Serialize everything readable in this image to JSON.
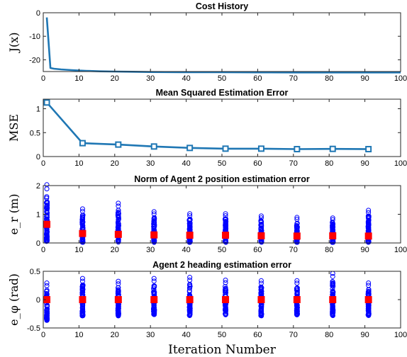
{
  "figure": {
    "xlabel": "Iteration Number"
  },
  "chart_data": [
    {
      "type": "line",
      "title": "Cost History",
      "ylabel": "J(x)",
      "xlim": [
        0,
        100
      ],
      "ylim": [
        -25,
        0
      ],
      "xticks": [
        0,
        10,
        20,
        30,
        40,
        50,
        60,
        70,
        80,
        90,
        100
      ],
      "yticks": [
        -20,
        -10,
        0
      ],
      "grid": false,
      "color": "#1f77b4",
      "series": [
        {
          "marker": "none",
          "x": [
            1,
            2,
            3,
            5,
            8,
            12,
            16,
            20,
            25,
            30,
            40,
            50,
            60,
            70,
            80,
            90,
            100
          ],
          "y": [
            -2,
            -23.5,
            -23.8,
            -24.1,
            -24.4,
            -24.7,
            -24.9,
            -25.0,
            -25.1,
            -25.2,
            -25.3,
            -25.3,
            -25.35,
            -25.4,
            -25.4,
            -25.4,
            -25.4
          ]
        }
      ]
    },
    {
      "type": "line",
      "title": "Mean Squared Estimation Error",
      "ylabel": "MSE",
      "xlim": [
        0,
        100
      ],
      "ylim": [
        0,
        1.2
      ],
      "xticks": [
        0,
        10,
        20,
        30,
        40,
        50,
        60,
        70,
        80,
        90,
        100
      ],
      "yticks": [
        0,
        0.5,
        1
      ],
      "grid": false,
      "color": "#1f77b4",
      "series": [
        {
          "marker": "square",
          "x": [
            1,
            11,
            21,
            31,
            41,
            51,
            61,
            71,
            81,
            91
          ],
          "y": [
            1.13,
            0.28,
            0.25,
            0.21,
            0.18,
            0.165,
            0.165,
            0.155,
            0.16,
            0.155
          ]
        }
      ]
    },
    {
      "type": "scatter",
      "title": "Norm of Agent 2 position estimation error",
      "ylabel": "e_r (m)",
      "xlim": [
        0,
        100
      ],
      "ylim": [
        0,
        2
      ],
      "xticks": [
        0,
        10,
        20,
        30,
        40,
        50,
        60,
        70,
        80,
        90,
        100
      ],
      "yticks": [
        0,
        1,
        2
      ],
      "grid": false,
      "samples_color": "#0000ff",
      "mean_color": "#ff0000",
      "x": [
        1,
        11,
        21,
        31,
        41,
        51,
        61,
        71,
        81,
        91
      ],
      "sample_min": [
        0,
        0,
        0,
        0,
        0,
        0,
        0,
        0,
        0,
        0
      ],
      "sample_max": [
        2.05,
        1.2,
        1.4,
        1.1,
        1.03,
        1.03,
        0.95,
        0.9,
        0.88,
        1.15
      ],
      "mean": [
        0.65,
        0.33,
        0.3,
        0.28,
        0.27,
        0.27,
        0.25,
        0.24,
        0.25,
        0.24
      ]
    },
    {
      "type": "scatter",
      "title": "Agent 2 heading estimation error",
      "ylabel": "e_φ (rad)",
      "xlim": [
        0,
        100
      ],
      "ylim": [
        -0.5,
        0.5
      ],
      "xticks": [
        0,
        10,
        20,
        30,
        40,
        50,
        60,
        70,
        80,
        90,
        100
      ],
      "yticks": [
        -0.5,
        0,
        0.5
      ],
      "grid": false,
      "samples_color": "#0000ff",
      "mean_color": "#ff0000",
      "x": [
        1,
        11,
        21,
        31,
        41,
        51,
        61,
        71,
        81,
        91
      ],
      "sample_min": [
        -0.38,
        -0.3,
        -0.3,
        -0.28,
        -0.3,
        -0.28,
        -0.3,
        -0.28,
        -0.3,
        -0.3
      ],
      "sample_max": [
        0.3,
        0.38,
        0.33,
        0.38,
        0.4,
        0.35,
        0.34,
        0.34,
        0.47,
        0.3
      ],
      "mean": [
        0,
        0,
        0,
        0,
        0,
        0,
        0,
        0,
        0,
        0
      ]
    }
  ]
}
